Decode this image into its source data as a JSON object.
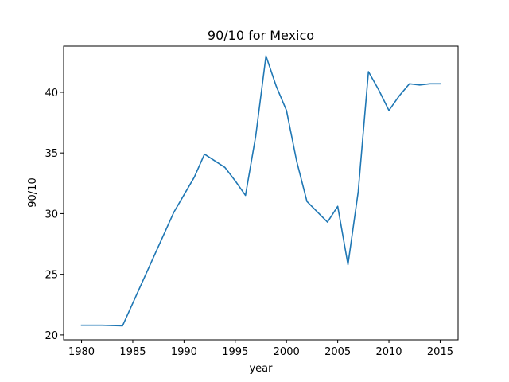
{
  "chart_data": {
    "type": "line",
    "title": "90/10 for Mexico",
    "xlabel": "year",
    "ylabel": "90/10",
    "xlim": [
      1978.25,
      2016.75
    ],
    "ylim": [
      19.6,
      43.8
    ],
    "xticks": [
      1980,
      1985,
      1990,
      1995,
      2000,
      2005,
      2010,
      2015
    ],
    "yticks": [
      20,
      25,
      30,
      35,
      40
    ],
    "grid": false,
    "series": [
      {
        "color": "#1f77b4",
        "x": [
          1980,
          1982,
          1984,
          1989,
          1991,
          1992,
          1994,
          1995,
          1996,
          1997,
          1998,
          1999,
          2000,
          2001,
          2002,
          2004,
          2005,
          2006,
          2007,
          2008,
          2009,
          2010,
          2011,
          2012,
          2013,
          2014,
          2015
        ],
        "y": [
          20.8,
          20.8,
          20.75,
          30.1,
          33.0,
          34.9,
          33.8,
          32.7,
          31.5,
          36.4,
          43.0,
          40.5,
          38.5,
          34.3,
          31.0,
          29.3,
          30.6,
          25.8,
          31.8,
          41.7,
          40.2,
          38.5,
          39.7,
          40.7,
          40.6,
          40.7,
          40.7
        ]
      }
    ]
  }
}
